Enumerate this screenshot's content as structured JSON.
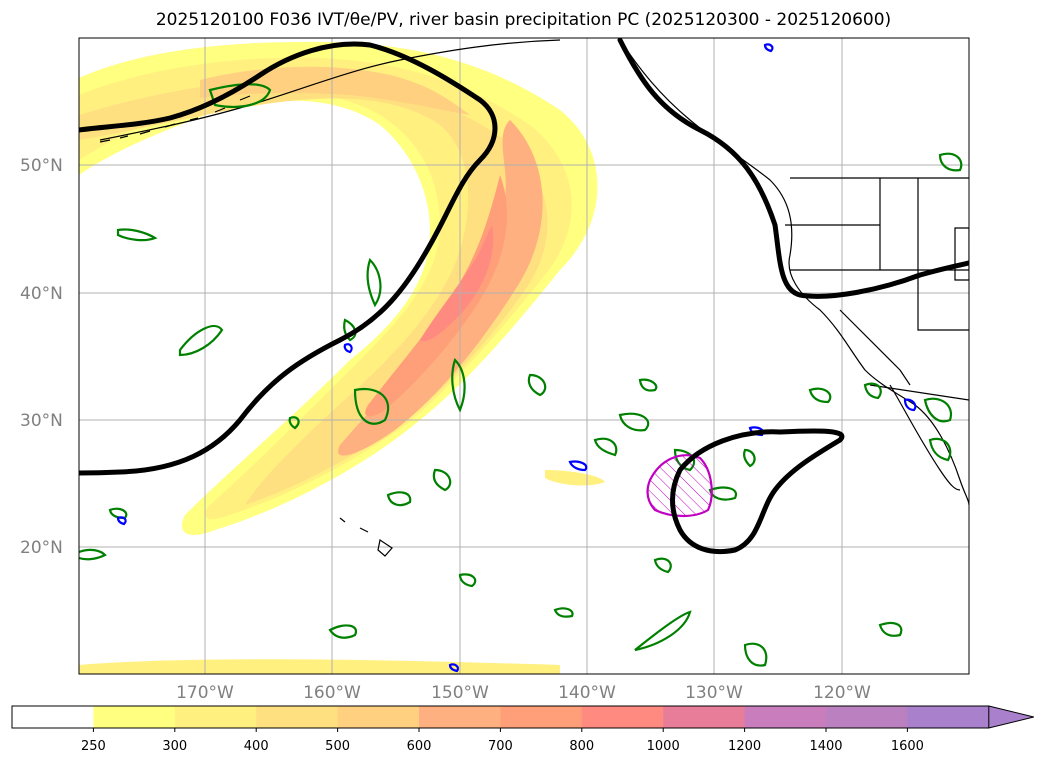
{
  "title": "2025120100 F036 IVT/θe/PV, river basin precipitation PC (2025120300 - 2025120600)",
  "map": {
    "extent": {
      "lon_min": -180,
      "lon_max": -110,
      "lat_min": 10,
      "lat_max": 60
    },
    "lat_labels": [
      "20°N",
      "30°N",
      "40°N",
      "50°N"
    ],
    "lat_values": [
      20,
      30,
      40,
      50
    ],
    "lon_labels": [
      "170°W",
      "160°W",
      "150°W",
      "140°W",
      "130°W",
      "120°W"
    ],
    "lon_values": [
      -170,
      -160,
      -150,
      -140,
      -130,
      -120
    ],
    "grid": true
  },
  "colorbar": {
    "ticks": [
      "250",
      "300",
      "400",
      "500",
      "600",
      "700",
      "800",
      "1000",
      "1200",
      "1400",
      "1600"
    ],
    "colors": [
      "#ffffff",
      "#ffff80",
      "#fff080",
      "#ffe080",
      "#ffd080",
      "#ffb080",
      "#ff9f7a",
      "#ff8a80",
      "#e87d9a",
      "#c97dbc",
      "#bb80c0",
      "#a880cc"
    ],
    "extend": "max"
  },
  "colors": {
    "theta_e_contour": "#000000",
    "pv_contour": "#008000",
    "negative_pv_contour": "#0000ff",
    "precip_pc_contour": "#c000c0",
    "coastline": "#000000"
  }
}
